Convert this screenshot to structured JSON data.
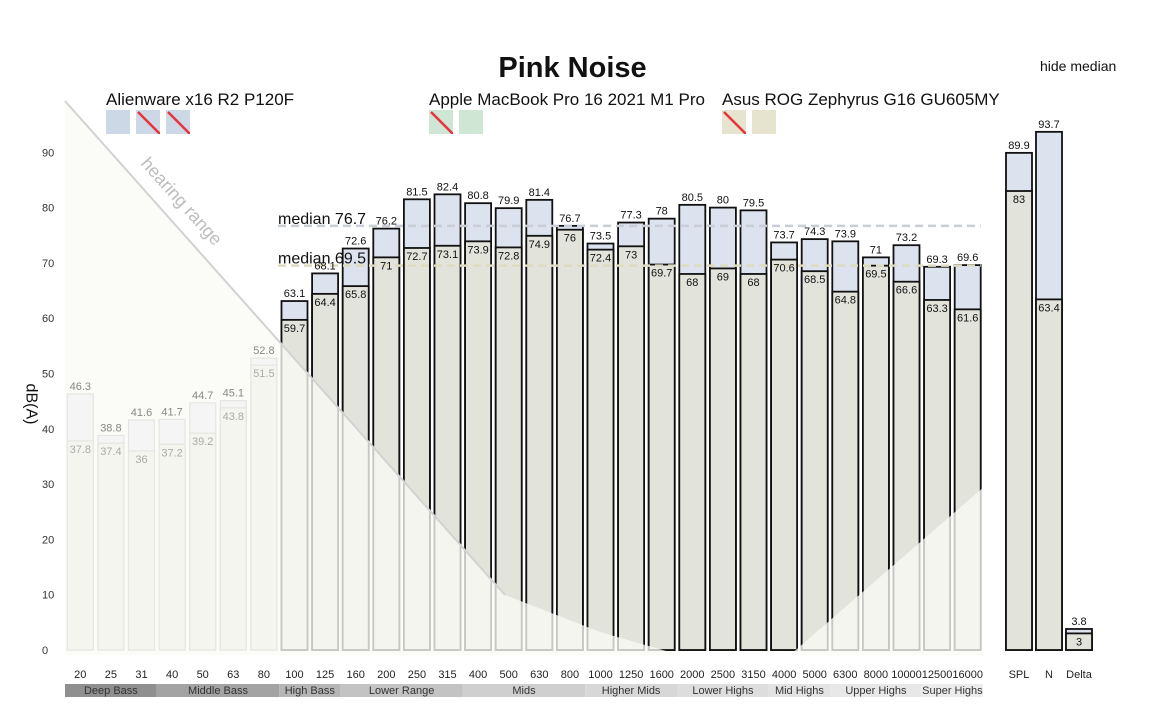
{
  "page": {
    "title": "Pink Noise",
    "toggle_label": "hide median",
    "hearing_range_label": "hearing range"
  },
  "legend": [
    {
      "name": "Alienware x16 R2 P120F",
      "swatch_color": "#cdd8e6",
      "swatches": 3,
      "disabled": [
        1,
        2
      ]
    },
    {
      "name": "Apple MacBook Pro 16 2021 M1 Pro",
      "swatch_color": "#cfe6d4",
      "swatches": 2,
      "disabled": [
        0
      ]
    },
    {
      "name": "Asus ROG Zephyrus G16 GU605MY",
      "swatch_color": "#e6e3cf",
      "swatches": 2,
      "disabled": [
        0
      ]
    }
  ],
  "chart_data": {
    "type": "bar",
    "title": "Pink Noise",
    "ylabel": "dB(A)",
    "ylim": [
      0,
      95
    ],
    "yticks": [
      0,
      10,
      20,
      30,
      40,
      50,
      60,
      70,
      80,
      90
    ],
    "categories": [
      "20",
      "25",
      "31",
      "40",
      "50",
      "63",
      "80",
      "100",
      "125",
      "160",
      "200",
      "250",
      "315",
      "400",
      "500",
      "630",
      "800",
      "1000",
      "1250",
      "1600",
      "2000",
      "2500",
      "3150",
      "4000",
      "5000",
      "6300",
      "8000",
      "10000",
      "12500",
      "16000"
    ],
    "category_labels": [
      "20",
      "25",
      "31",
      "40",
      "50",
      "63",
      "80",
      "100",
      "125",
      "160",
      "200",
      "250",
      "315",
      "400",
      "500",
      "630",
      "800",
      "1000",
      "1250",
      "1600",
      "2000",
      "2500",
      "3150",
      "4000",
      "5000",
      "6300",
      "8000",
      "10000",
      "12500",
      "16000"
    ],
    "series": [
      {
        "name": "Alienware x16 R2 P120F",
        "values": [
          46.3,
          38.8,
          41.6,
          41.7,
          44.7,
          45.1,
          52.8,
          63.1,
          68.1,
          72.6,
          76.2,
          81.5,
          82.4,
          80.8,
          79.9,
          81.4,
          76.7,
          73.5,
          77.3,
          78,
          80.5,
          80,
          79.5,
          73.7,
          74.3,
          73.9,
          71,
          73.2,
          69.3,
          69.6
        ],
        "labels": [
          "46.3",
          "38.8",
          "41.6",
          "41.7",
          "44.7",
          "45.1",
          "52.8",
          "63.1",
          "68.1",
          "72.6",
          "76.2",
          "81.5",
          "82.4",
          "80.8",
          "79.9",
          "81.4",
          "76.7",
          "73.5",
          "77.3",
          "78",
          "80.5",
          "80",
          "79.5",
          "73.7",
          "74.3",
          "73.9",
          "71",
          "73.2",
          "69.3",
          "69.6"
        ],
        "color": "#dde3ee"
      },
      {
        "name": "",
        "values": [
          37.8,
          37.4,
          36,
          37.2,
          39.2,
          43.8,
          51.5,
          59.7,
          64.4,
          65.8,
          71,
          72.7,
          73.1,
          73.9,
          72.8,
          74.9,
          76,
          72.4,
          73,
          69.7,
          68,
          69,
          68,
          70.6,
          68.5,
          64.8,
          69.5,
          66.6,
          63.3,
          61.6
        ],
        "labels": [
          "37.8",
          "37.4",
          "36",
          "37.2",
          "39.2",
          "43.8",
          "51.5",
          "59.7",
          "64.4",
          "65.8",
          "71",
          "72.7",
          "73.1",
          "73.9",
          "72.8",
          "74.9",
          "76",
          "72.4",
          "73",
          "69.7",
          "68",
          "69",
          "68",
          "70.6",
          "68.5",
          "64.8",
          "69.5",
          "66.6",
          "63.3",
          "61.6"
        ],
        "color": "#e2e4dc"
      }
    ],
    "summary": {
      "categories": [
        "SPL",
        "N",
        "Delta"
      ],
      "top_values": [
        89.9,
        93.7,
        3.8
      ],
      "top_labels": [
        "89.9",
        "93.7",
        "3.8"
      ],
      "bottom_values": [
        83,
        63.4,
        3
      ],
      "bottom_labels": [
        "83",
        "63.4",
        "3"
      ]
    },
    "medians": [
      {
        "label": "median 76.7",
        "value": 76.7
      },
      {
        "label": "median 69.5",
        "value": 69.5
      }
    ],
    "bands": [
      {
        "name": "Deep Bass",
        "from": 0,
        "to": 3,
        "color": "#8f8f8f"
      },
      {
        "name": "Middle Bass",
        "from": 3,
        "to": 7,
        "color": "#a3a3a3"
      },
      {
        "name": "High Bass",
        "from": 7,
        "to": 9,
        "color": "#b5b5b5"
      },
      {
        "name": "Lower Range",
        "from": 9,
        "to": 13,
        "color": "#c3c3c3"
      },
      {
        "name": "Mids",
        "from": 13,
        "to": 17,
        "color": "#cfcfcf"
      },
      {
        "name": "Higher Mids",
        "from": 17,
        "to": 20,
        "color": "#d7d7d7"
      },
      {
        "name": "Lower Highs",
        "from": 20,
        "to": 23,
        "color": "#dddddd"
      },
      {
        "name": "Mid Highs",
        "from": 23,
        "to": 25,
        "color": "#e3e3e3"
      },
      {
        "name": "Upper Highs",
        "from": 25,
        "to": 28,
        "color": "#e8e8e8"
      },
      {
        "name": "Super Highs",
        "from": 28,
        "to": 30,
        "color": "#ececec"
      }
    ]
  }
}
